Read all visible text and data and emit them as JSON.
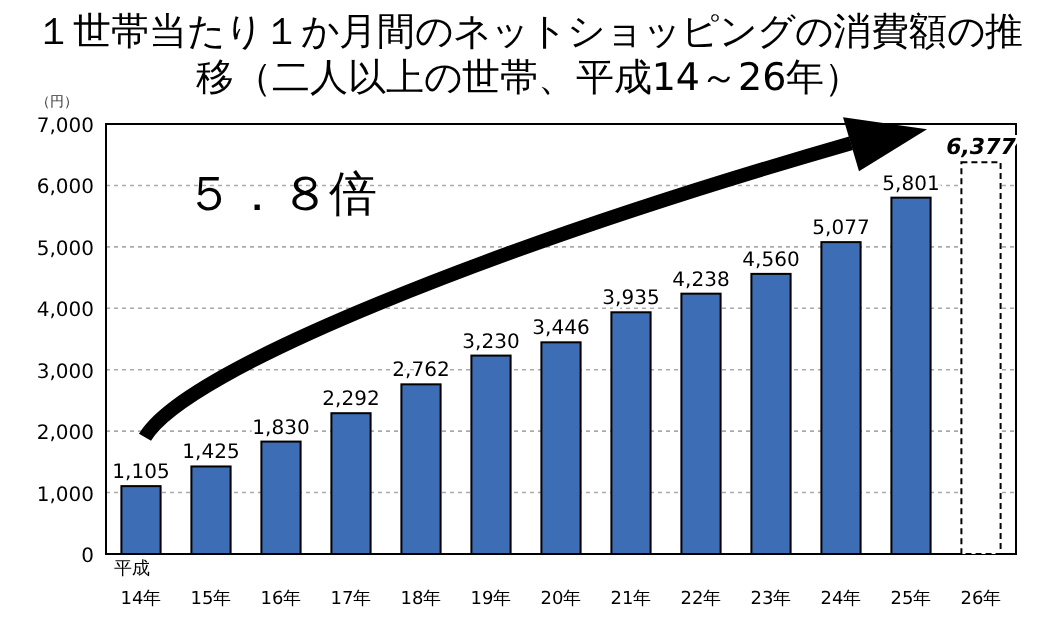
{
  "chart_data": {
    "type": "bar",
    "title": "１世帯当たり１か月間のネットショッピングの消費額の推移（二人以上の世帯、平成14～26年）",
    "ylabel": "（円）",
    "annotations": [
      "５．８倍"
    ],
    "categories": [
      "平成\n14年",
      "15年",
      "16年",
      "17年",
      "18年",
      "19年",
      "20年",
      "21年",
      "22年",
      "23年",
      "24年",
      "25年",
      "26年"
    ],
    "series": [
      {
        "color": "#3d6db5",
        "values": [
          1105,
          1425,
          1830,
          2292,
          2762,
          3230,
          3446,
          3935,
          4238,
          4560,
          5077,
          5801,
          null
        ],
        "value_labels": [
          "1,105",
          "1,425",
          "1,830",
          "2,292",
          "2,762",
          "3,230",
          "3,446",
          "3,935",
          "4,238",
          "4,560",
          "5,077",
          "5,801",
          null
        ]
      },
      {
        "color": "#ffffff",
        "line_style": "dashed",
        "values": [
          null,
          null,
          null,
          null,
          null,
          null,
          null,
          null,
          null,
          null,
          null,
          null,
          6377
        ],
        "value_labels": [
          null,
          null,
          null,
          null,
          null,
          null,
          null,
          null,
          null,
          null,
          null,
          null,
          "6,377"
        ]
      }
    ],
    "ylim": [
      0,
      7000
    ],
    "yticks": [
      {
        "value": 0,
        "label": "0"
      },
      {
        "value": 1000,
        "label": "1,000"
      },
      {
        "value": 2000,
        "label": "2,000"
      },
      {
        "value": 3000,
        "label": "3,000"
      },
      {
        "value": 4000,
        "label": "4,000"
      },
      {
        "value": 5000,
        "label": "5,000"
      },
      {
        "value": 6000,
        "label": "6,000"
      },
      {
        "value": 7000,
        "label": "7,000"
      }
    ],
    "grid": "y"
  }
}
